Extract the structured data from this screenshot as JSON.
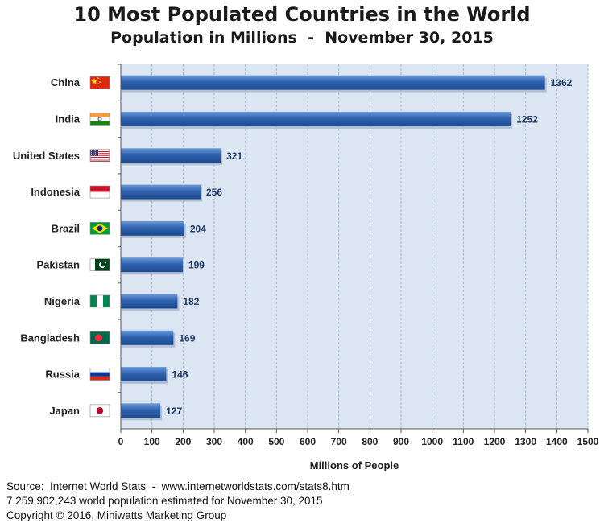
{
  "chart_data": {
    "type": "bar",
    "orientation": "horizontal",
    "title": "10 Most Populated Countries in the World",
    "subtitle": "Population in Millions  -  November 30, 2015",
    "xlabel": "Millions of People",
    "ylabel": "",
    "xlim": [
      0,
      1500
    ],
    "x_ticks": [
      0,
      100,
      200,
      300,
      400,
      500,
      600,
      700,
      800,
      900,
      1000,
      1100,
      1200,
      1300,
      1400,
      1500
    ],
    "grid": "vertical",
    "categories": [
      "China",
      "India",
      "United States",
      "Indonesia",
      "Brazil",
      "Pakistan",
      "Nigeria",
      "Bangladesh",
      "Russia",
      "Japan"
    ],
    "values": [
      1362,
      1252,
      321,
      256,
      204,
      199,
      182,
      169,
      146,
      127
    ],
    "flag_icons": [
      "china-flag-icon",
      "india-flag-icon",
      "usa-flag-icon",
      "indonesia-flag-icon",
      "brazil-flag-icon",
      "pakistan-flag-icon",
      "nigeria-flag-icon",
      "bangladesh-flag-icon",
      "russia-flag-icon",
      "japan-flag-icon"
    ],
    "colors": {
      "bar": "#2f62b0",
      "bar_light": "#6f9ad8",
      "bar_dark": "#1f4a8c",
      "plot_bg": "#dce6f2",
      "grid": "#a9bcd4",
      "value_label": "#1f3864"
    }
  },
  "footer": {
    "source": "Source:  Internet World Stats  -  www.internetworldstats.com/stats8.htm",
    "estimate": "7,259,902,243 world population estimated for November 30, 2015",
    "copyright": "Copyright © 2016, Miniwatts Marketing Group"
  }
}
